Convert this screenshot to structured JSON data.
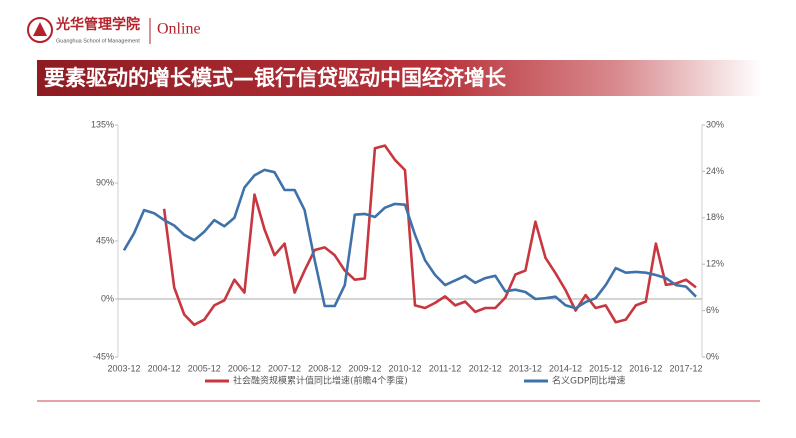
{
  "header": {
    "logo_name": "光华管理学院",
    "logo_subtitle": "Guanghua School of Management",
    "brand": "Online"
  },
  "slide_title": "要素驱动的增长模式—银行信贷驱动中国经济增长",
  "chart_data": {
    "type": "line",
    "categories": [
      "2003-12",
      null,
      null,
      null,
      "2004-12",
      null,
      null,
      null,
      "2005-12",
      null,
      null,
      null,
      "2006-12",
      null,
      null,
      null,
      "2007-12",
      null,
      null,
      null,
      "2008-12",
      null,
      null,
      null,
      "2009-12",
      null,
      null,
      null,
      "2010-12",
      null,
      null,
      null,
      "2011-12",
      null,
      null,
      null,
      "2012-12",
      null,
      null,
      null,
      "2013-12",
      null,
      null,
      null,
      "2014-12",
      null,
      null,
      null,
      "2015-12",
      null,
      null,
      null,
      "2016-12",
      null,
      null,
      null,
      "2017-12",
      null
    ],
    "series": [
      {
        "name": "社会融资规模累计值同比增速(前瞻4个季度)",
        "color": "#c8373f",
        "axis": "y",
        "values": [
          null,
          null,
          null,
          null,
          70,
          9,
          -12,
          -20,
          -16,
          -5,
          -1,
          15,
          5,
          81,
          54,
          34,
          43,
          5,
          22,
          38,
          40,
          34,
          22,
          15,
          16,
          117,
          119,
          108,
          100,
          -5,
          -7,
          -3,
          2,
          -5,
          -2,
          -10,
          -7,
          -7,
          1,
          19,
          22,
          60,
          32,
          20,
          7,
          -9,
          3,
          -7,
          -5,
          -18,
          -16,
          -5,
          -2,
          43,
          11,
          12,
          15,
          9
        ]
      },
      {
        "name": "名义GDP同比增速",
        "color": "#3f72a9",
        "axis": "y2",
        "values": [
          13.8,
          16,
          19,
          18.6,
          17.7,
          17,
          15.8,
          15.1,
          16.2,
          17.7,
          16.9,
          18,
          21.9,
          23.5,
          24.2,
          23.9,
          21.6,
          21.6,
          19,
          12.5,
          6.6,
          6.6,
          9.3,
          18.4,
          18.5,
          18.1,
          19.3,
          19.8,
          19.7,
          15.8,
          12.5,
          10.6,
          9.3,
          9.9,
          10.5,
          9.6,
          10.2,
          10.5,
          8.5,
          8.7,
          8.4,
          7.5,
          7.6,
          7.8,
          6.7,
          6.3,
          7.1,
          7.6,
          9.3,
          11.5,
          10.9,
          11,
          10.9,
          10.6,
          10.2,
          9.3,
          9.1,
          7.8
        ]
      }
    ],
    "ylim": [
      -45,
      135
    ],
    "yticks": [
      {
        "value": -45,
        "label": "-45%"
      },
      {
        "value": 0,
        "label": "0%"
      },
      {
        "value": 45,
        "label": "45%"
      },
      {
        "value": 90,
        "label": "90%"
      },
      {
        "value": 135,
        "label": "135%"
      }
    ],
    "y2lim": [
      0,
      30
    ],
    "y2ticks": [
      {
        "value": 0,
        "label": "0%"
      },
      {
        "value": 6,
        "label": "6%"
      },
      {
        "value": 12,
        "label": "12%"
      },
      {
        "value": 18,
        "label": "18%"
      },
      {
        "value": 24,
        "label": "24%"
      },
      {
        "value": 30,
        "label": "30%"
      }
    ],
    "legend": "bottom"
  }
}
